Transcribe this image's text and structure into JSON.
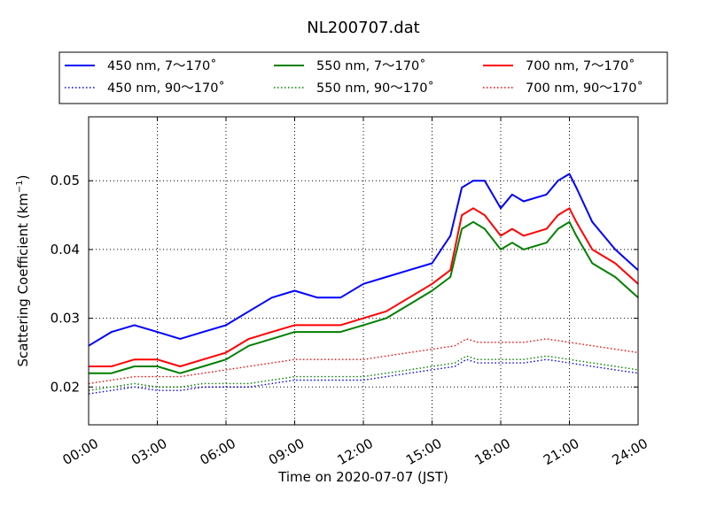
{
  "chart_data": {
    "type": "line",
    "title": "NL200707.dat",
    "xlabel": "Time on 2020-07-07 (JST)",
    "ylabel": "Scattering Coefficient (km",
    "ylabel_sup": "−1",
    "ylabel_tail": ")",
    "x_ticks": [
      "00:00",
      "03:00",
      "06:00",
      "09:00",
      "12:00",
      "15:00",
      "18:00",
      "21:00",
      "24:00"
    ],
    "x_tick_hours": [
      0,
      3,
      6,
      9,
      12,
      15,
      18,
      21,
      24
    ],
    "y_ticks": [
      0.02,
      0.03,
      0.04,
      0.05
    ],
    "xlim": [
      0,
      24
    ],
    "ylim": [
      0.0145,
      0.0593
    ],
    "grid": true,
    "legend_position": "top",
    "series": [
      {
        "name": "450 nm, 7～170˚",
        "color": "#0000ff",
        "style": "solid",
        "x": [
          0,
          1,
          2,
          3,
          4,
          5,
          6,
          7,
          8,
          9,
          10,
          11,
          12,
          13,
          14,
          15,
          15.8,
          16.3,
          16.8,
          17.3,
          18,
          18.5,
          19,
          20,
          20.5,
          21,
          21.3,
          22,
          23,
          24
        ],
        "y": [
          0.026,
          0.028,
          0.029,
          0.028,
          0.027,
          0.028,
          0.029,
          0.031,
          0.033,
          0.034,
          0.033,
          0.033,
          0.035,
          0.036,
          0.037,
          0.038,
          0.042,
          0.049,
          0.05,
          0.05,
          0.046,
          0.048,
          0.047,
          0.048,
          0.05,
          0.051,
          0.049,
          0.044,
          0.04,
          0.037
        ]
      },
      {
        "name": "450 nm, 90～170˚",
        "color": "#0000ff",
        "style": "dotted",
        "x": [
          0,
          1,
          2,
          3,
          4,
          5,
          6,
          7,
          8,
          9,
          10,
          11,
          12,
          13,
          14,
          15,
          16,
          16.5,
          17,
          18,
          19,
          20,
          21,
          22,
          23,
          24
        ],
        "y": [
          0.019,
          0.0195,
          0.02,
          0.0195,
          0.0195,
          0.02,
          0.02,
          0.02,
          0.0205,
          0.021,
          0.021,
          0.021,
          0.021,
          0.0215,
          0.022,
          0.0225,
          0.023,
          0.024,
          0.0235,
          0.0235,
          0.0235,
          0.024,
          0.0235,
          0.023,
          0.0225,
          0.022
        ]
      },
      {
        "name": "550 nm, 7～170˚",
        "color": "#008000",
        "style": "solid",
        "x": [
          0,
          1,
          2,
          3,
          4,
          5,
          6,
          7,
          8,
          9,
          10,
          11,
          12,
          13,
          14,
          15,
          15.8,
          16.3,
          16.8,
          17.3,
          18,
          18.5,
          19,
          20,
          20.5,
          21,
          21.3,
          22,
          23,
          24
        ],
        "y": [
          0.022,
          0.022,
          0.023,
          0.023,
          0.022,
          0.023,
          0.024,
          0.026,
          0.027,
          0.028,
          0.028,
          0.028,
          0.029,
          0.03,
          0.032,
          0.034,
          0.036,
          0.043,
          0.044,
          0.043,
          0.04,
          0.041,
          0.04,
          0.041,
          0.043,
          0.044,
          0.042,
          0.038,
          0.036,
          0.033
        ]
      },
      {
        "name": "550 nm, 90～170˚",
        "color": "#008000",
        "style": "dotted",
        "x": [
          0,
          1,
          2,
          3,
          4,
          5,
          6,
          7,
          8,
          9,
          10,
          11,
          12,
          13,
          14,
          15,
          16,
          16.5,
          17,
          18,
          19,
          20,
          21,
          22,
          23,
          24
        ],
        "y": [
          0.0195,
          0.02,
          0.0205,
          0.02,
          0.02,
          0.0205,
          0.0205,
          0.0205,
          0.021,
          0.0215,
          0.0215,
          0.0215,
          0.0215,
          0.022,
          0.0225,
          0.023,
          0.0235,
          0.0245,
          0.024,
          0.024,
          0.024,
          0.0245,
          0.024,
          0.0235,
          0.023,
          0.0225
        ]
      },
      {
        "name": "700 nm, 7～170˚",
        "color": "#ff0000",
        "style": "solid",
        "x": [
          0,
          1,
          2,
          3,
          4,
          5,
          6,
          7,
          8,
          9,
          10,
          11,
          12,
          13,
          14,
          15,
          15.8,
          16.3,
          16.8,
          17.3,
          18,
          18.5,
          19,
          20,
          20.5,
          21,
          21.3,
          22,
          23,
          24
        ],
        "y": [
          0.023,
          0.023,
          0.024,
          0.024,
          0.023,
          0.024,
          0.025,
          0.027,
          0.028,
          0.029,
          0.029,
          0.029,
          0.03,
          0.031,
          0.033,
          0.035,
          0.037,
          0.045,
          0.046,
          0.045,
          0.042,
          0.043,
          0.042,
          0.043,
          0.045,
          0.046,
          0.044,
          0.04,
          0.038,
          0.035
        ]
      },
      {
        "name": "700 nm, 90～170˚",
        "color": "#ff0000",
        "style": "dotted",
        "x": [
          0,
          1,
          2,
          3,
          4,
          5,
          6,
          7,
          8,
          9,
          10,
          11,
          12,
          13,
          14,
          15,
          16,
          16.5,
          17,
          18,
          19,
          20,
          21,
          22,
          23,
          24
        ],
        "y": [
          0.0205,
          0.021,
          0.0215,
          0.0215,
          0.0215,
          0.022,
          0.0225,
          0.023,
          0.0235,
          0.024,
          0.024,
          0.024,
          0.024,
          0.0245,
          0.025,
          0.0255,
          0.026,
          0.027,
          0.0265,
          0.0265,
          0.0265,
          0.027,
          0.0265,
          0.026,
          0.0255,
          0.025
        ]
      }
    ]
  }
}
